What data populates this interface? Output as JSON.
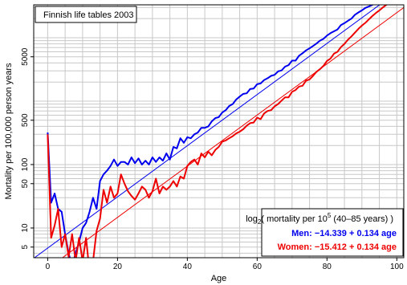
{
  "chart_data": {
    "type": "line",
    "title": "Finnish life tables 2003",
    "xlabel": "Age",
    "ylabel": "Mortality per 100,000 person years",
    "xlim": [
      -4,
      102
    ],
    "ylim": [
      3.4,
      33000
    ],
    "y_scale": "log",
    "grid": true,
    "x_ticks": [
      0,
      20,
      40,
      60,
      80,
      100
    ],
    "y_ticks": [
      5,
      10,
      50,
      100,
      500,
      5000
    ],
    "legend_position": "bottom-right",
    "legend": {
      "heading": "log2( mortality per 10^5 (40–85 years) )",
      "heading_parts": {
        "pre": "log",
        "sub": "2",
        "mid": "( mortality per 10",
        "sup": "5",
        "post": " (40–85 years) )"
      },
      "men_text": "Men: −14.339 + 0.134 age",
      "women_text": "Women: −15.412 + 0.134 age"
    },
    "fits": [
      {
        "name": "Men",
        "color": "#0000ee",
        "intercept_log2": -14.339,
        "slope": 0.134
      },
      {
        "name": "Women",
        "color": "#ee0000",
        "intercept_log2": -15.412,
        "slope": 0.134
      }
    ],
    "series": [
      {
        "name": "Men",
        "color": "#0000ee",
        "x": [
          0,
          1,
          2,
          3,
          4,
          5,
          6,
          7,
          8,
          9,
          10,
          11,
          12,
          13,
          14,
          15,
          16,
          17,
          18,
          19,
          20,
          21,
          22,
          23,
          24,
          25,
          26,
          27,
          28,
          29,
          30,
          31,
          32,
          33,
          34,
          35,
          36,
          37,
          38,
          39,
          40,
          41,
          42,
          43,
          44,
          45,
          46,
          47,
          48,
          49,
          50,
          51,
          52,
          53,
          54,
          55,
          56,
          57,
          58,
          59,
          60,
          61,
          62,
          63,
          64,
          65,
          66,
          67,
          68,
          69,
          70,
          71,
          72,
          73,
          74,
          75,
          76,
          77,
          78,
          79,
          80,
          81,
          82,
          83,
          84,
          85,
          86,
          87,
          88,
          89,
          90,
          91,
          92,
          93,
          94,
          95,
          96,
          97,
          98,
          99,
          100
        ],
        "y": [
          320,
          25,
          35,
          20,
          18,
          8,
          4,
          2.5,
          4,
          6,
          10,
          12,
          18,
          30,
          20,
          55,
          70,
          80,
          95,
          120,
          95,
          110,
          110,
          100,
          130,
          105,
          125,
          100,
          115,
          100,
          130,
          110,
          130,
          115,
          150,
          120,
          190,
          180,
          260,
          220,
          270,
          260,
          300,
          320,
          380,
          380,
          400,
          480,
          540,
          560,
          660,
          720,
          840,
          900,
          1060,
          1180,
          1300,
          1330,
          1550,
          1580,
          1850,
          1900,
          2150,
          2300,
          2500,
          2600,
          2950,
          3050,
          3500,
          3700,
          4350,
          4350,
          5200,
          5700,
          6300,
          6800,
          7400,
          8100,
          9000,
          9600,
          10800,
          11800,
          12600,
          13500,
          15800,
          17000,
          18500,
          20000,
          23000,
          25000,
          27000,
          29500,
          31000,
          33000,
          36000,
          39000,
          42000,
          45000,
          47000,
          50000,
          52000
        ]
      },
      {
        "name": "Women",
        "color": "#ee0000",
        "x": [
          0,
          1,
          2,
          3,
          4,
          5,
          6,
          7,
          8,
          9,
          10,
          11,
          12,
          13,
          14,
          15,
          16,
          17,
          18,
          19,
          20,
          21,
          22,
          23,
          24,
          25,
          26,
          27,
          28,
          29,
          30,
          31,
          32,
          33,
          34,
          35,
          36,
          37,
          38,
          39,
          40,
          41,
          42,
          43,
          44,
          45,
          46,
          47,
          48,
          49,
          50,
          51,
          52,
          53,
          54,
          55,
          56,
          57,
          58,
          59,
          60,
          61,
          62,
          63,
          64,
          65,
          66,
          67,
          68,
          69,
          70,
          71,
          72,
          73,
          74,
          75,
          76,
          77,
          78,
          79,
          80,
          81,
          82,
          83,
          84,
          85,
          86,
          87,
          88,
          89,
          90,
          91,
          92,
          93,
          94,
          95,
          96,
          97,
          98,
          99,
          100
        ],
        "y": [
          300,
          7,
          11,
          20,
          5,
          8,
          3.5,
          8,
          3,
          7,
          3,
          7,
          2,
          3,
          9,
          14,
          40,
          25,
          45,
          30,
          35,
          70,
          50,
          38,
          32,
          28,
          35,
          45,
          40,
          30,
          38,
          60,
          35,
          45,
          40,
          45,
          55,
          45,
          65,
          60,
          95,
          110,
          120,
          100,
          150,
          130,
          160,
          140,
          170,
          190,
          230,
          240,
          260,
          280,
          310,
          330,
          360,
          410,
          450,
          460,
          550,
          520,
          640,
          700,
          720,
          830,
          900,
          1020,
          1150,
          1150,
          1400,
          1500,
          1700,
          1750,
          2100,
          2200,
          2500,
          2900,
          3200,
          3600,
          4300,
          4700,
          5600,
          6000,
          7100,
          8000,
          9300,
          10500,
          12000,
          13800,
          15500,
          17200,
          19500,
          22000,
          24500,
          27000,
          30000,
          33000,
          36000,
          40000,
          44000
        ]
      }
    ]
  }
}
